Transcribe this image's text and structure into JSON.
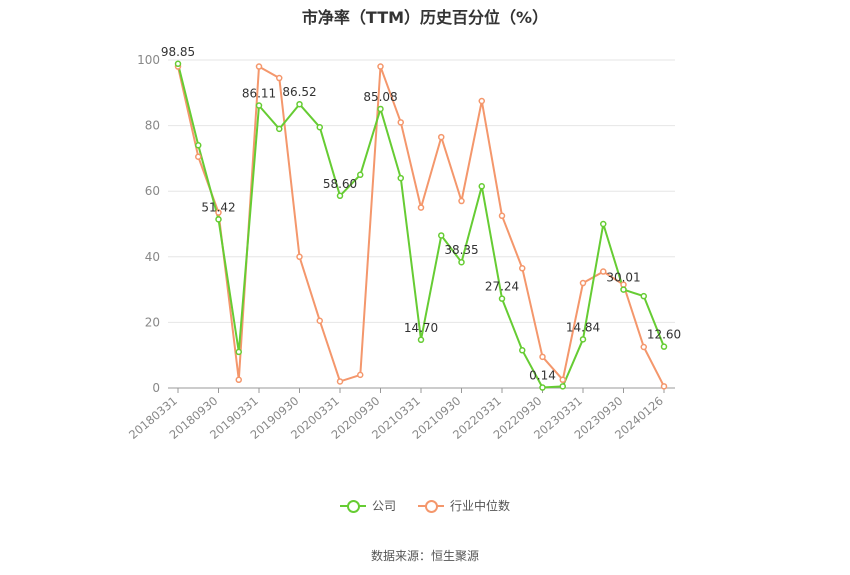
{
  "chart_data": {
    "type": "line",
    "title": "市净率（TTM）历史百分位（%）",
    "x": [
      "20180331",
      "20180630",
      "20180930",
      "20181231",
      "20190331",
      "20190630",
      "20190930",
      "20191231",
      "20200331",
      "20200630",
      "20200930",
      "20201231",
      "20210331",
      "20210630",
      "20210930",
      "20211231",
      "20220331",
      "20220630",
      "20220930",
      "20221231",
      "20230331",
      "20230630",
      "20230930",
      "20231231",
      "20240126"
    ],
    "x_tick_labels": [
      "20180331",
      "20180930",
      "20190331",
      "20190930",
      "20200331",
      "20200930",
      "20210331",
      "20210930",
      "20220331",
      "20220930",
      "20230331",
      "20230930",
      "20240126"
    ],
    "ylim": [
      0,
      100
    ],
    "y_ticks": [
      0,
      20,
      40,
      60,
      80,
      100
    ],
    "grid": true,
    "legend_position": "bottom",
    "series": [
      {
        "name": "公司",
        "color": "#66cc33",
        "values": [
          98.85,
          74.0,
          51.42,
          11.0,
          86.11,
          79.0,
          86.52,
          79.5,
          58.6,
          65.0,
          85.08,
          64.0,
          14.7,
          46.5,
          38.35,
          61.5,
          27.24,
          11.5,
          0.14,
          0.5,
          14.84,
          50.0,
          30.01,
          28.0,
          12.6
        ],
        "labels": {
          "0": "98.85",
          "2": "51.42",
          "4": "86.11",
          "6": "86.52",
          "8": "58.60",
          "10": "85.08",
          "12": "14.70",
          "14": "38.35",
          "16": "27.24",
          "18": "0.14",
          "20": "14.84",
          "22": "30.01",
          "24": "12.60"
        }
      },
      {
        "name": "行业中位数",
        "color": "#f4976c",
        "values": [
          98.0,
          70.5,
          53.5,
          2.5,
          98.0,
          94.5,
          40.0,
          20.5,
          2.0,
          4.0,
          98.0,
          81.0,
          55.0,
          76.5,
          57.0,
          87.5,
          52.5,
          36.5,
          9.5,
          2.5,
          32.0,
          35.5,
          31.5,
          12.5,
          0.5
        ]
      }
    ]
  },
  "source": "数据来源：恒生聚源"
}
